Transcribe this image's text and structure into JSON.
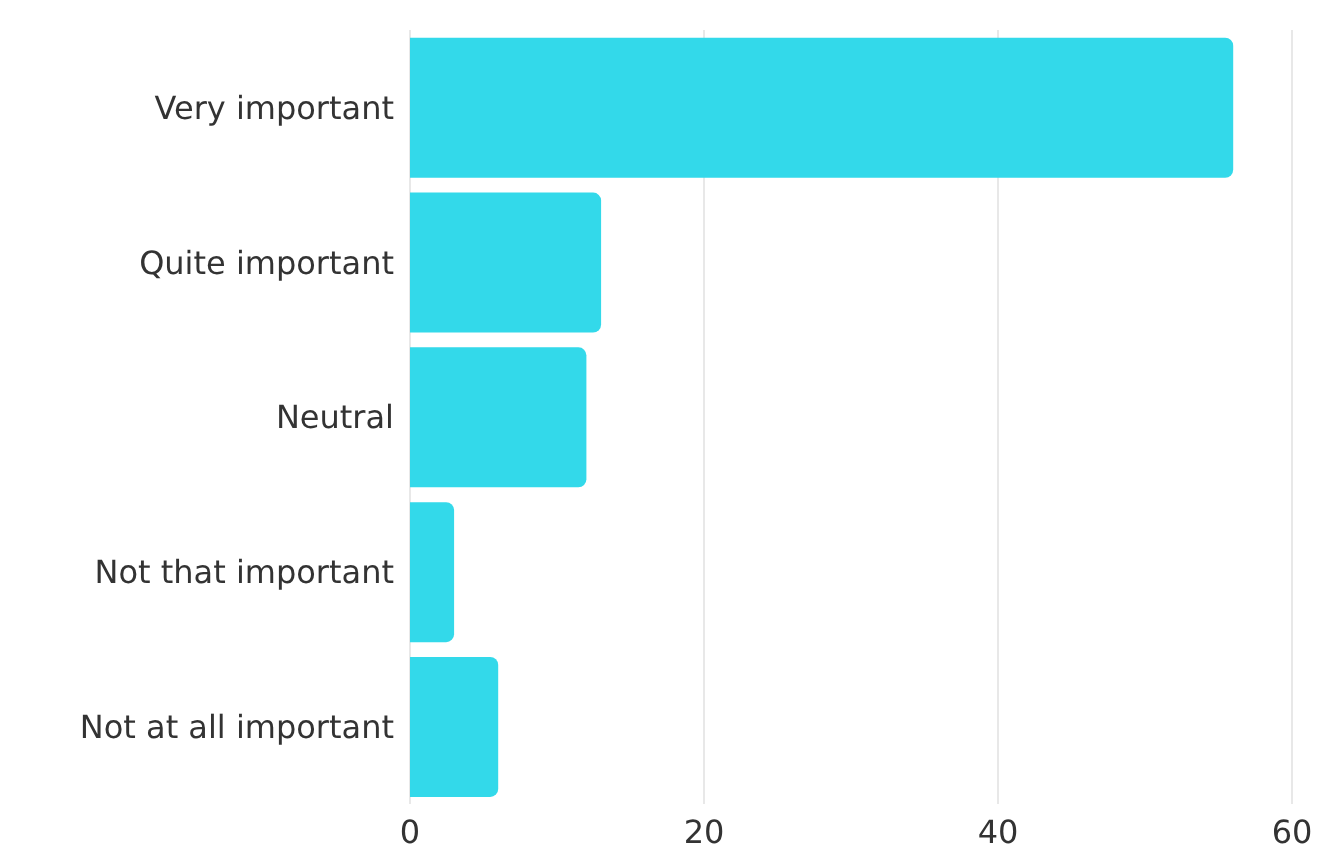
{
  "chart_data": {
    "type": "bar",
    "orientation": "horizontal",
    "categories": [
      "Very important",
      "Quite important",
      "Neutral",
      "Not that important",
      "Not at all important"
    ],
    "values": [
      56,
      13,
      12,
      3,
      6
    ],
    "color": "#33d9ea",
    "xlim": [
      0,
      60
    ],
    "xticks": [
      0,
      20,
      40,
      60
    ],
    "grid": "x"
  }
}
